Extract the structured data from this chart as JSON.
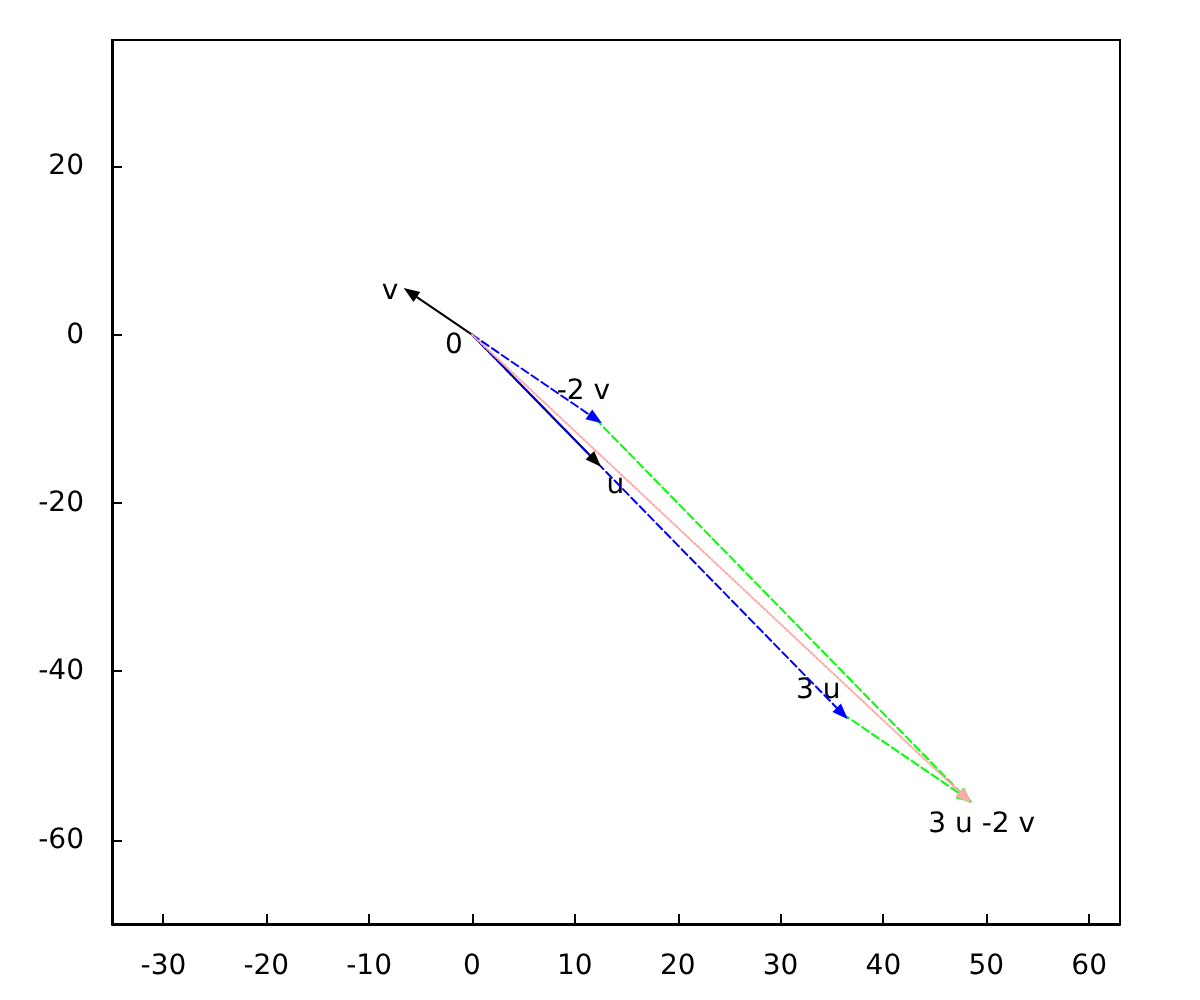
{
  "chart_data": {
    "type": "line",
    "xlim": [
      -35,
      63
    ],
    "ylim": [
      -70,
      35
    ],
    "xticks": [
      -30,
      -20,
      -10,
      0,
      10,
      20,
      30,
      40,
      50,
      60
    ],
    "yticks": [
      -60,
      -40,
      -20,
      0,
      20
    ],
    "series": [
      {
        "color": "#000000",
        "line_style": "solid",
        "x": [
          -6,
          0,
          12
        ],
        "values": [
          5,
          0,
          -15
        ]
      },
      {
        "color": "#0000ff",
        "line_style": "dashed",
        "x": [
          0,
          12
        ],
        "values": [
          0,
          -10
        ]
      },
      {
        "color": "#0000ff",
        "line_style": "dashed",
        "x": [
          0,
          36
        ],
        "values": [
          0,
          -45
        ]
      },
      {
        "color": "#00ff00",
        "line_style": "dashed",
        "x": [
          12,
          48
        ],
        "values": [
          -10,
          -55
        ]
      },
      {
        "color": "#00ff00",
        "line_style": "dashed",
        "x": [
          36,
          48
        ],
        "values": [
          -45,
          -55
        ]
      },
      {
        "color": "#ffaaaa",
        "line_style": "dotted",
        "x": [
          0,
          48
        ],
        "values": [
          0,
          -55
        ]
      }
    ],
    "annotations": [
      {
        "text": "0",
        "x": 0,
        "y": 0
      },
      {
        "text": "v",
        "x": -6,
        "y": 5
      },
      {
        "text": "u",
        "x": 12,
        "y": -15
      },
      {
        "text": "-2 v",
        "x": 12,
        "y": -10
      },
      {
        "text": "3 u",
        "x": 36,
        "y": -45
      },
      {
        "text": "3 u -2 v",
        "x": 48,
        "y": -55
      }
    ]
  }
}
